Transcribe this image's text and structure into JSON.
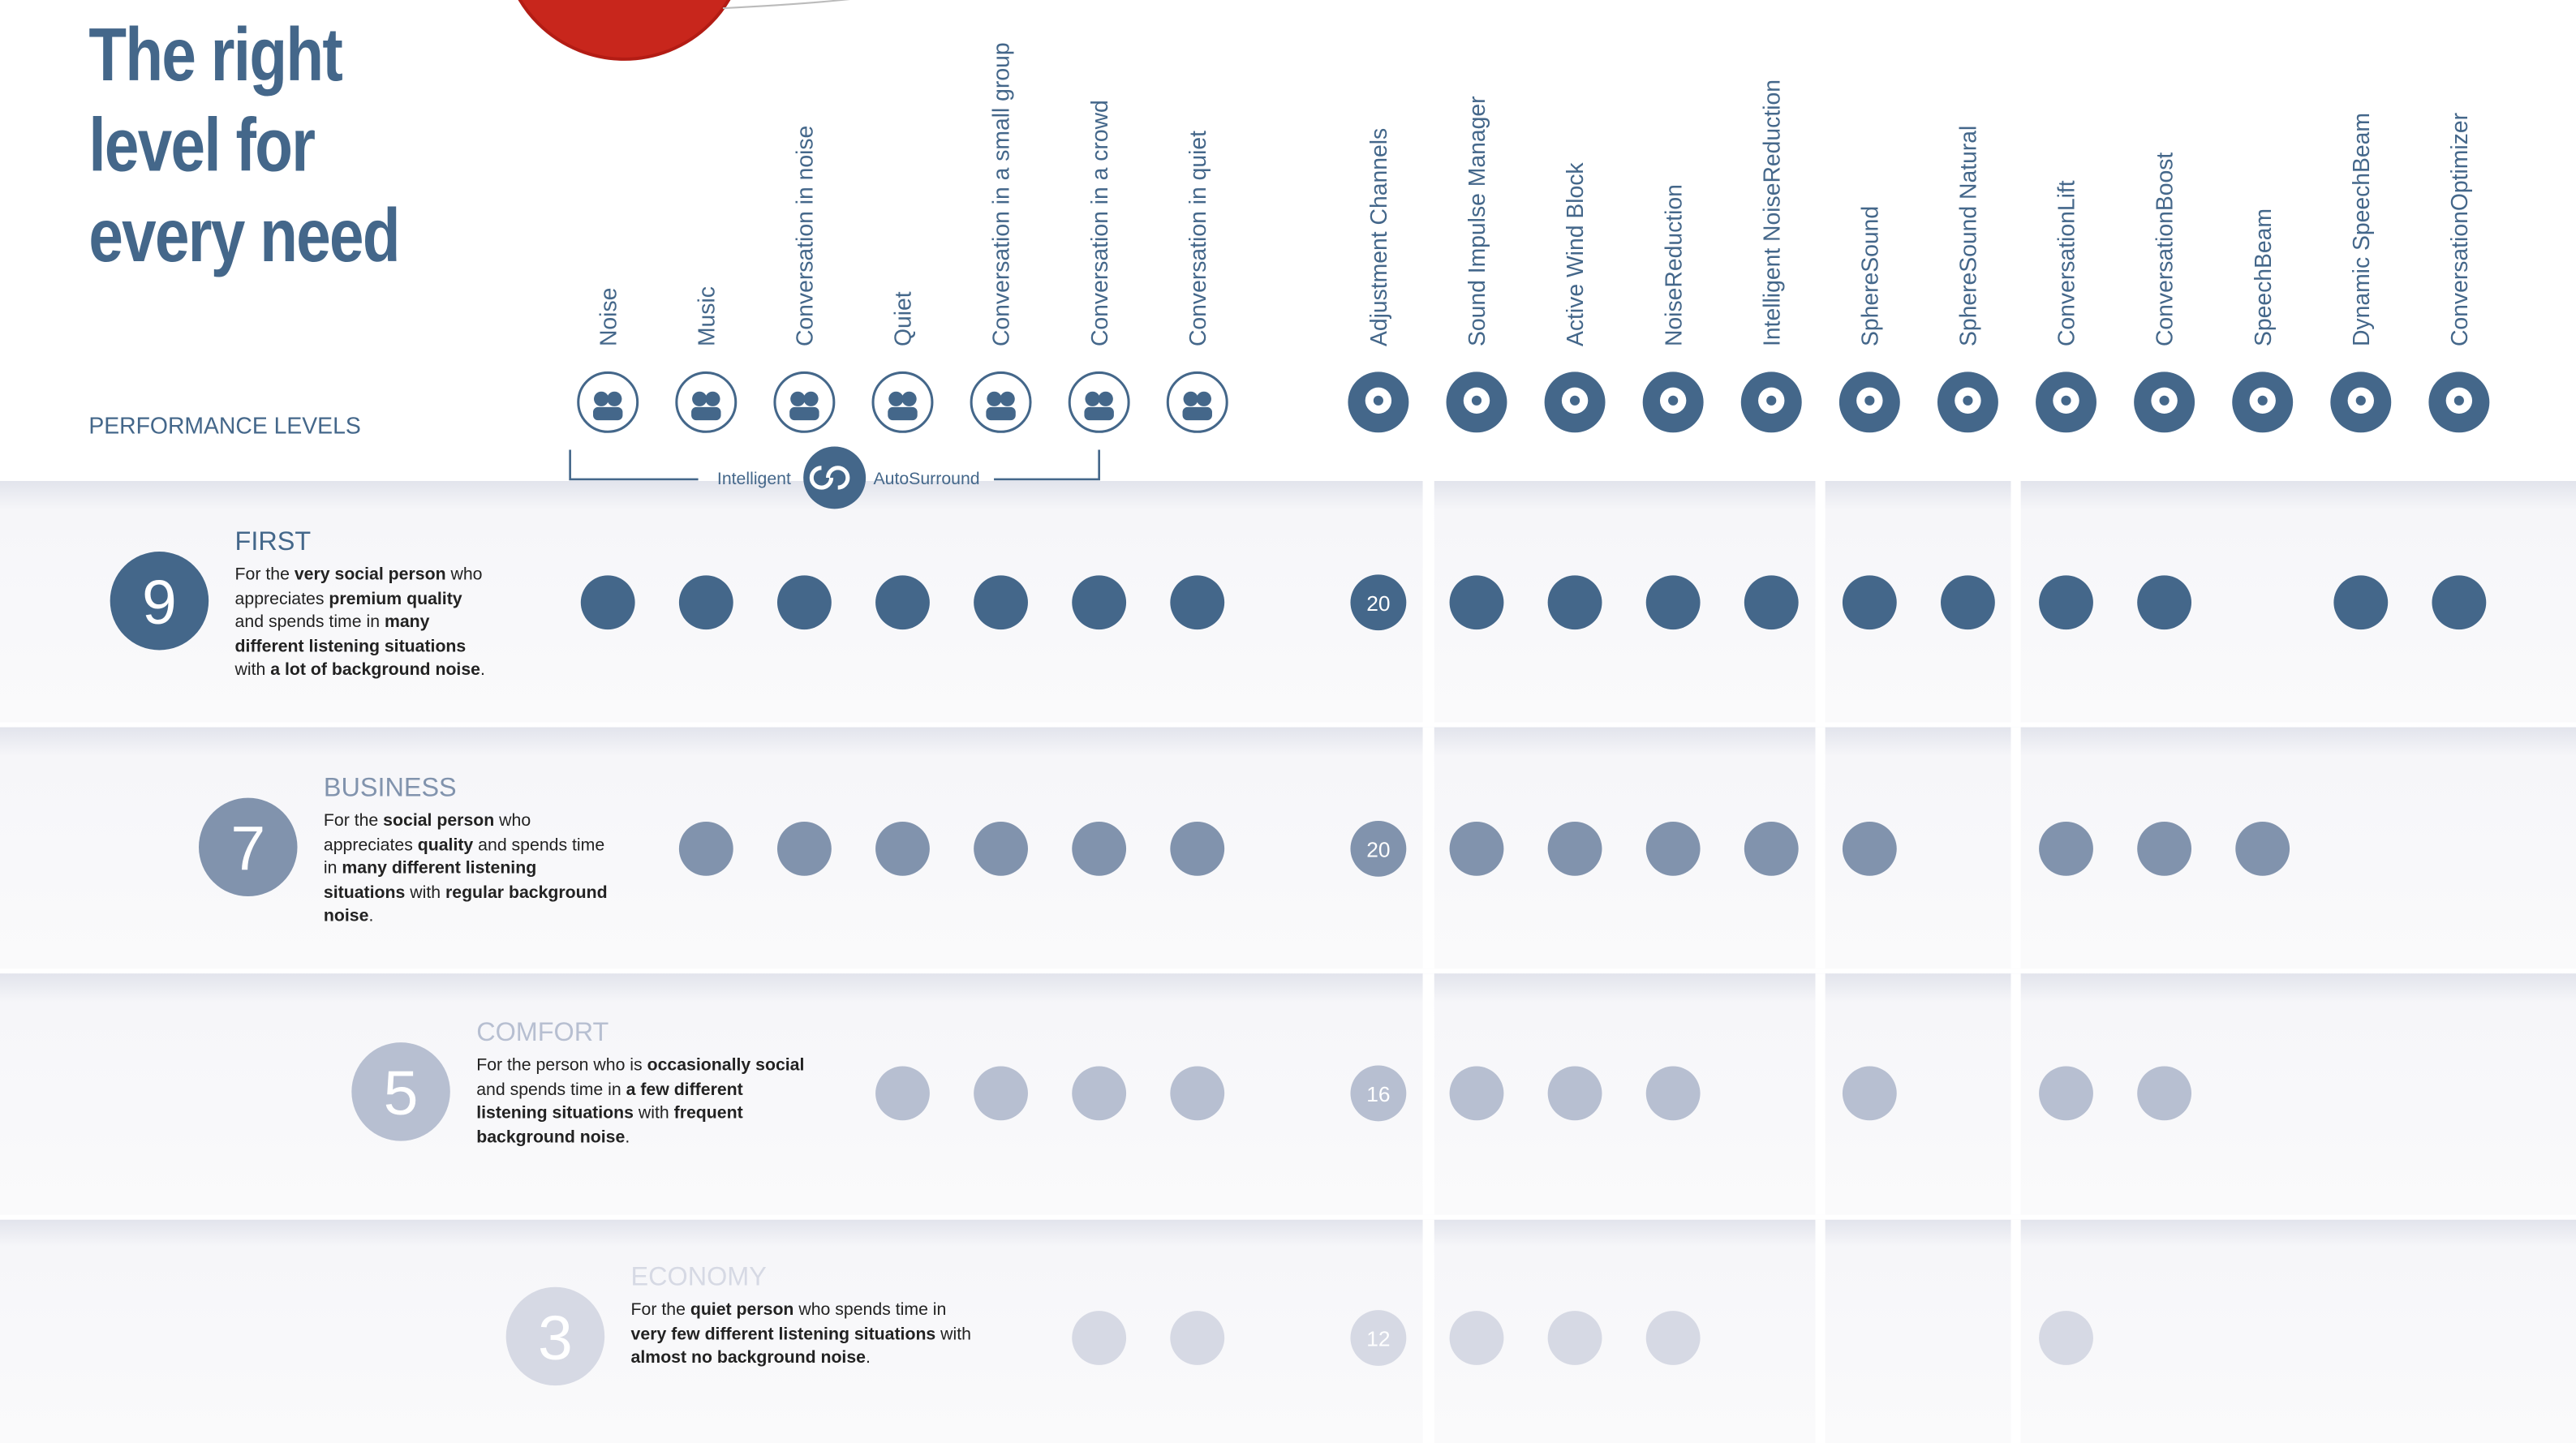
{
  "header": {
    "title_lines": [
      "The right",
      "level for",
      "every need"
    ],
    "subtitle": "PERFORMANCE LEVELS"
  },
  "columns": [
    "Noise",
    "Music",
    "Conversation in noise",
    "Quiet",
    "Conversation in a small group",
    "Conversation in a crowd",
    "Conversation in quiet",
    "Adjustment Channels",
    "Sound Impulse Manager",
    "Active Wind Block",
    "NoiseReduction",
    "Intelligent NoiseReduction",
    "SphereSound",
    "SphereSound Natural",
    "ConversationLift",
    "ConversationBoost",
    "SpeechBeam",
    "Dynamic SpeechBeam",
    "ConversationOptimizer"
  ],
  "autosurround": {
    "left": "Intelligent",
    "right": "AutoSurround"
  },
  "levels": [
    {
      "number": 9,
      "name": "FIRST",
      "color": "#44678a",
      "description": [
        {
          "text": "For the ",
          "bold": false
        },
        {
          "text": "very social person",
          "bold": true
        },
        {
          "text": " who appreciates ",
          "bold": false
        },
        {
          "text": "premium quality",
          "bold": true
        },
        {
          "text": " and spends time in ",
          "bold": false
        },
        {
          "text": "many different listening situations",
          "bold": true
        },
        {
          "text": " with ",
          "bold": false
        },
        {
          "text": "a lot of background noise",
          "bold": true
        },
        {
          "text": ".",
          "bold": false
        }
      ],
      "cells": [
        true,
        true,
        true,
        true,
        true,
        true,
        true,
        20,
        true,
        true,
        true,
        true,
        true,
        true,
        true,
        true,
        false,
        true,
        true
      ]
    },
    {
      "number": 7,
      "name": "BUSINESS",
      "color": "#8193ad",
      "description": [
        {
          "text": "For the ",
          "bold": false
        },
        {
          "text": "social person",
          "bold": true
        },
        {
          "text": " who appreciates ",
          "bold": false
        },
        {
          "text": "quality",
          "bold": true
        },
        {
          "text": " and spends time in ",
          "bold": false
        },
        {
          "text": "many different listening situations",
          "bold": true
        },
        {
          "text": " with ",
          "bold": false
        },
        {
          "text": "regular background noise",
          "bold": true
        },
        {
          "text": ".",
          "bold": false
        }
      ],
      "cells": [
        false,
        true,
        true,
        true,
        true,
        true,
        true,
        20,
        true,
        true,
        true,
        true,
        true,
        false,
        true,
        true,
        true,
        false,
        false
      ]
    },
    {
      "number": 5,
      "name": "COMFORT",
      "color": "#b7bfd1",
      "description": [
        {
          "text": "For the person who is ",
          "bold": false
        },
        {
          "text": "occasionally social",
          "bold": true
        },
        {
          "text": " and spends time in ",
          "bold": false
        },
        {
          "text": "a few different listening situations",
          "bold": true
        },
        {
          "text": " with ",
          "bold": false
        },
        {
          "text": "frequent background noise",
          "bold": true
        },
        {
          "text": ".",
          "bold": false
        }
      ],
      "cells": [
        false,
        false,
        false,
        true,
        true,
        true,
        true,
        16,
        true,
        true,
        true,
        false,
        true,
        false,
        true,
        true,
        false,
        false,
        false
      ]
    },
    {
      "number": 3,
      "name": "ECONOMY",
      "color": "#d6d9e4",
      "description": [
        {
          "text": "For the ",
          "bold": false
        },
        {
          "text": "quiet person",
          "bold": true
        },
        {
          "text": " who spends time in ",
          "bold": false
        },
        {
          "text": "very few different listening situations",
          "bold": true
        },
        {
          "text": " with ",
          "bold": false
        },
        {
          "text": "almost no background noise",
          "bold": true
        },
        {
          "text": ".",
          "bold": false
        }
      ],
      "cells": [
        false,
        false,
        false,
        false,
        false,
        true,
        true,
        12,
        true,
        true,
        true,
        false,
        false,
        false,
        true,
        false,
        false,
        false,
        false
      ]
    }
  ]
}
